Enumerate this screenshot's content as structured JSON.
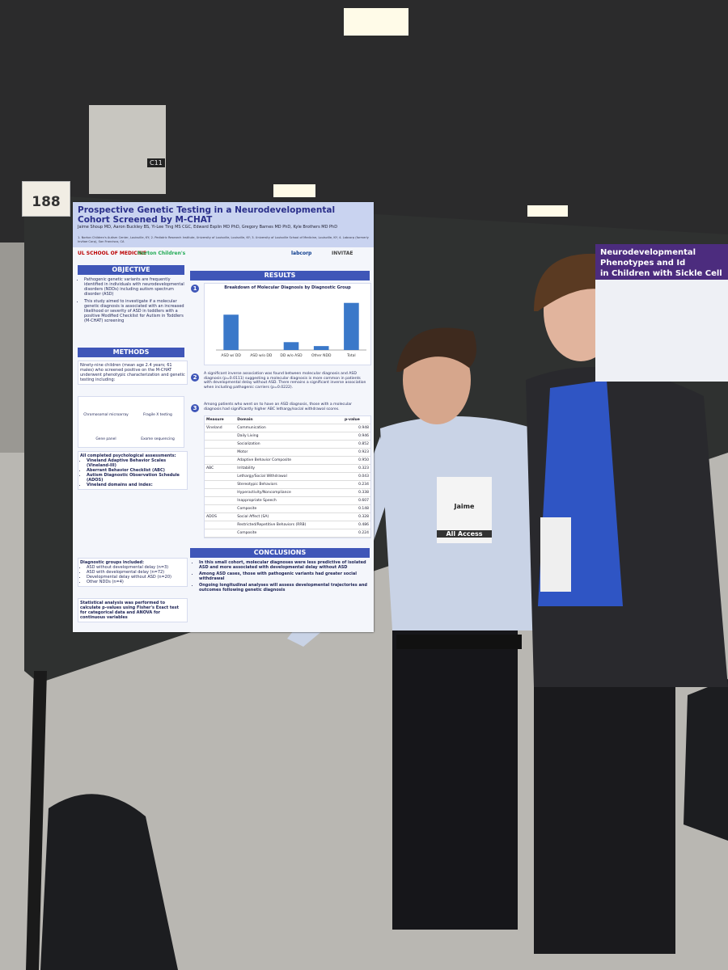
{
  "sign": {
    "booth": "188",
    "column": "C11"
  },
  "poster": {
    "title": "Prospective Genetic Testing in a Neurodevelopmental Cohort Screened by M-CHAT",
    "authors": "Jaime Shoup MD, Aaron Buckley BS, Yi-Lee Ting MS CGC, Edward Esplin MD PhD, Gregory Barnes MD PhD, Kyle Brothers MD PhD",
    "affiliations": "1. Norton Children's Autism Center, Louisville, KY; 2. Pediatric Research Institute, University of Louisville, Louisville, KY; 3. University of Louisville School of Medicine, Louisville, KY; 4. Labcorp (formerly Invitae Corp), San Francisco, CA",
    "logos": [
      "UL SCHOOL OF MEDICINE",
      "Norton Children's",
      "labcorp",
      "INVITAE"
    ],
    "objective": {
      "heading": "OBJECTIVE",
      "items": [
        "Pathogenic genetic variants are frequently identified in individuals with neurodevelopmental disorders (NDDs) including autism spectrum disorder (ASD)",
        "This study aimed to investigate if a molecular genetic diagnosis is associated with an increased likelihood or severity of ASD in toddlers with a positive Modified Checklist for Autism in Toddlers (M-CHAT) screening"
      ]
    },
    "methods": {
      "heading": "METHODS",
      "intro": "Ninety-nine children (mean age 2.4 years; 61 males) who screened positive on the M-CHAT underwent phenotypic characterization and genetic testing including:",
      "tests": [
        "Chromosomal microarray",
        "Fragile X testing",
        "Gene panel",
        "Exome sequencing"
      ],
      "assessments_intro": "All completed psychological assessments:",
      "assessments": [
        "Vineland Adaptive Behavior Scales (Vineland-III)",
        "Aberrant Behavior Checklist (ABC)",
        "Autism Diagnostic Observation Schedule (ADOS)",
        "Vineland domains and index:"
      ],
      "groups_intro": "Diagnostic groups included:",
      "groups": [
        "ASD without developmental delay (n=3)",
        "ASD with developmental delay (n=72)",
        "Developmental delay without ASD (n=20)",
        "Other NDDs (n=4)"
      ],
      "stats": "Statistical analysis was performed to calculate p-values using Fisher's Exact test for categorical data and ANOVA for continuous variables"
    },
    "results": {
      "heading": "RESULTS",
      "chart": {
        "title": "Breakdown of Molecular Diagnosis by Diagnostic Group",
        "categories": [
          "ASD w/ DD",
          "ASD w/o DD",
          "DD w/o ASD",
          "Other NDD",
          "Total"
        ],
        "values": [
          9,
          0,
          2,
          1,
          12
        ],
        "ylim": [
          0,
          14
        ],
        "color": "#3a78c9"
      },
      "finding2": "A significant inverse association was found between molecular diagnosis and ASD diagnosis (p=0.0111) suggesting a molecular diagnosis is more common in patients with developmental delay without ASD. There remains a significant inverse association when including pathogenic carriers (p=0.0222).",
      "finding3": "Among patients who went on to have an ASD diagnosis, those with a molecular diagnosis had significantly higher ABC lethargy/social withdrawal scores.",
      "table": {
        "header": [
          "Measure",
          "Domain",
          "p-value"
        ],
        "rows": [
          [
            "Vineland",
            "Communication",
            "0.948"
          ],
          [
            "",
            "Daily Living",
            "0.946"
          ],
          [
            "",
            "Socialization",
            "0.852"
          ],
          [
            "",
            "Motor",
            "0.923"
          ],
          [
            "",
            "Adaptive Behavior Composite",
            "0.950"
          ],
          [
            "ABC",
            "Irritability",
            "0.323"
          ],
          [
            "",
            "Lethargy/Social Withdrawal",
            "0.043"
          ],
          [
            "",
            "Stereotypic Behaviors",
            "0.234"
          ],
          [
            "",
            "Hyperactivity/Noncompliance",
            "0.338"
          ],
          [
            "",
            "Inappropriate Speech",
            "0.607"
          ],
          [
            "",
            "Composite",
            "0.148"
          ],
          [
            "ADOS",
            "Social Affect (SA)",
            "0.328"
          ],
          [
            "",
            "Restricted/Repetitive Behaviors (RRB)",
            "0.486"
          ],
          [
            "",
            "Composite",
            "0.224"
          ]
        ]
      }
    },
    "conclusions": {
      "heading": "CONCLUSIONS",
      "items": [
        "In this small cohort, molecular diagnoses were less predictive of isolated ASD and more associated with developmental delay without ASD",
        "Among ASD cases, those with pathogenic variants had greater social withdrawal",
        "Ongoing longitudinal analyses will assess developmental trajectories and outcomes following genetic diagnosis"
      ]
    }
  },
  "poster2": {
    "title": [
      "Neurodevelopmental Phenotypes and Id",
      "in Children with Sickle Cell"
    ]
  },
  "badge": {
    "name": "Jaime",
    "access": "All Access"
  }
}
